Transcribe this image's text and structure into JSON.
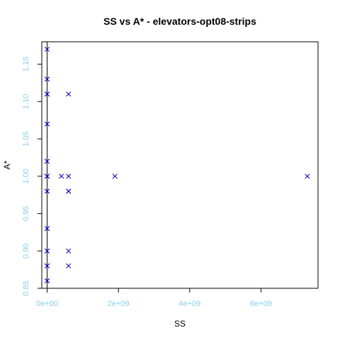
{
  "chart_data": {
    "type": "scatter",
    "title": "SS vs A* - elevators-opt08-strips",
    "xlabel": "SS",
    "ylabel": "A*",
    "xlim": [
      -150000000.0,
      7600000000.0
    ],
    "ylim": [
      0.85,
      1.18
    ],
    "x_ticks": [
      {
        "value": 0,
        "label": "0e+00"
      },
      {
        "value": 2000000000,
        "label": "2e+09"
      },
      {
        "value": 4000000000,
        "label": "4e+09"
      },
      {
        "value": 6000000000,
        "label": "6e+09"
      }
    ],
    "y_ticks": [
      {
        "value": 0.85,
        "label": "0.85"
      },
      {
        "value": 0.9,
        "label": "0.90"
      },
      {
        "value": 0.95,
        "label": "0.95"
      },
      {
        "value": 1.0,
        "label": "1.00"
      },
      {
        "value": 1.05,
        "label": "1.05"
      },
      {
        "value": 1.1,
        "label": "1.10"
      },
      {
        "value": 1.15,
        "label": "1.15"
      }
    ],
    "vline_x": 0,
    "marker": "x",
    "colors": {
      "points": "#0000cd",
      "tick_labels": "#87ceeb",
      "axes": "#000000"
    },
    "points": [
      {
        "x": 0,
        "y": 1.17
      },
      {
        "x": 0,
        "y": 1.13
      },
      {
        "x": 0,
        "y": 1.13
      },
      {
        "x": 0,
        "y": 1.11
      },
      {
        "x": 0,
        "y": 1.11
      },
      {
        "x": 0,
        "y": 1.07
      },
      {
        "x": 0,
        "y": 1.07
      },
      {
        "x": 0,
        "y": 1.02
      },
      {
        "x": 0,
        "y": 1.02
      },
      {
        "x": 0,
        "y": 1.0
      },
      {
        "x": 0,
        "y": 1.0
      },
      {
        "x": 0,
        "y": 1.0
      },
      {
        "x": 0,
        "y": 0.98
      },
      {
        "x": 0,
        "y": 0.98
      },
      {
        "x": 0,
        "y": 0.93
      },
      {
        "x": 0,
        "y": 0.93
      },
      {
        "x": 0,
        "y": 0.9
      },
      {
        "x": 0,
        "y": 0.9
      },
      {
        "x": 0,
        "y": 0.88
      },
      {
        "x": 0,
        "y": 0.88
      },
      {
        "x": 0,
        "y": 0.86
      },
      {
        "x": 0,
        "y": 0.86
      },
      {
        "x": 400000000,
        "y": 1.0
      },
      {
        "x": 600000000,
        "y": 1.11
      },
      {
        "x": 600000000,
        "y": 1.0
      },
      {
        "x": 600000000,
        "y": 0.98
      },
      {
        "x": 600000000,
        "y": 0.98
      },
      {
        "x": 600000000,
        "y": 0.9
      },
      {
        "x": 600000000,
        "y": 0.88
      },
      {
        "x": 1900000000,
        "y": 1.0
      },
      {
        "x": 7300000000,
        "y": 1.0
      }
    ]
  }
}
